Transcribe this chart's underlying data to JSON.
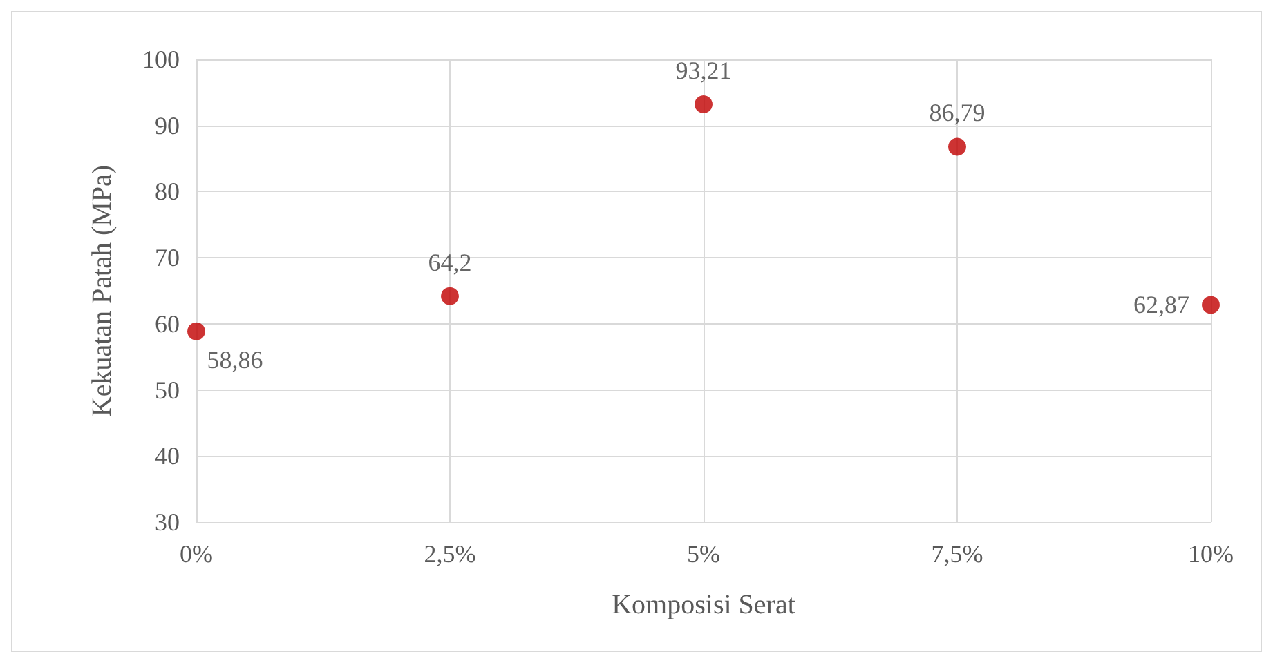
{
  "chart_data": {
    "type": "scatter",
    "xlabel": "Komposisi Serat",
    "ylabel": "Kekuatan Patah (MPa)",
    "x": [
      0,
      2.5,
      5,
      7.5,
      10
    ],
    "values": [
      58.86,
      64.2,
      93.21,
      86.79,
      62.87
    ],
    "value_labels": [
      "58,86",
      "64,2",
      "93,21",
      "86,79",
      "62,87"
    ],
    "color": "#c00000",
    "marker": "circle",
    "grid": true,
    "xlim": [
      0,
      10
    ],
    "xticks": [
      {
        "value": 0,
        "label": "0%"
      },
      {
        "value": 2.5,
        "label": "2,5%"
      },
      {
        "value": 5,
        "label": "5%"
      },
      {
        "value": 7.5,
        "label": "7,5%"
      },
      {
        "value": 10,
        "label": "10%"
      }
    ],
    "ylim": [
      30,
      100
    ],
    "yticks": [
      30,
      40,
      50,
      60,
      70,
      80,
      90,
      100
    ]
  }
}
